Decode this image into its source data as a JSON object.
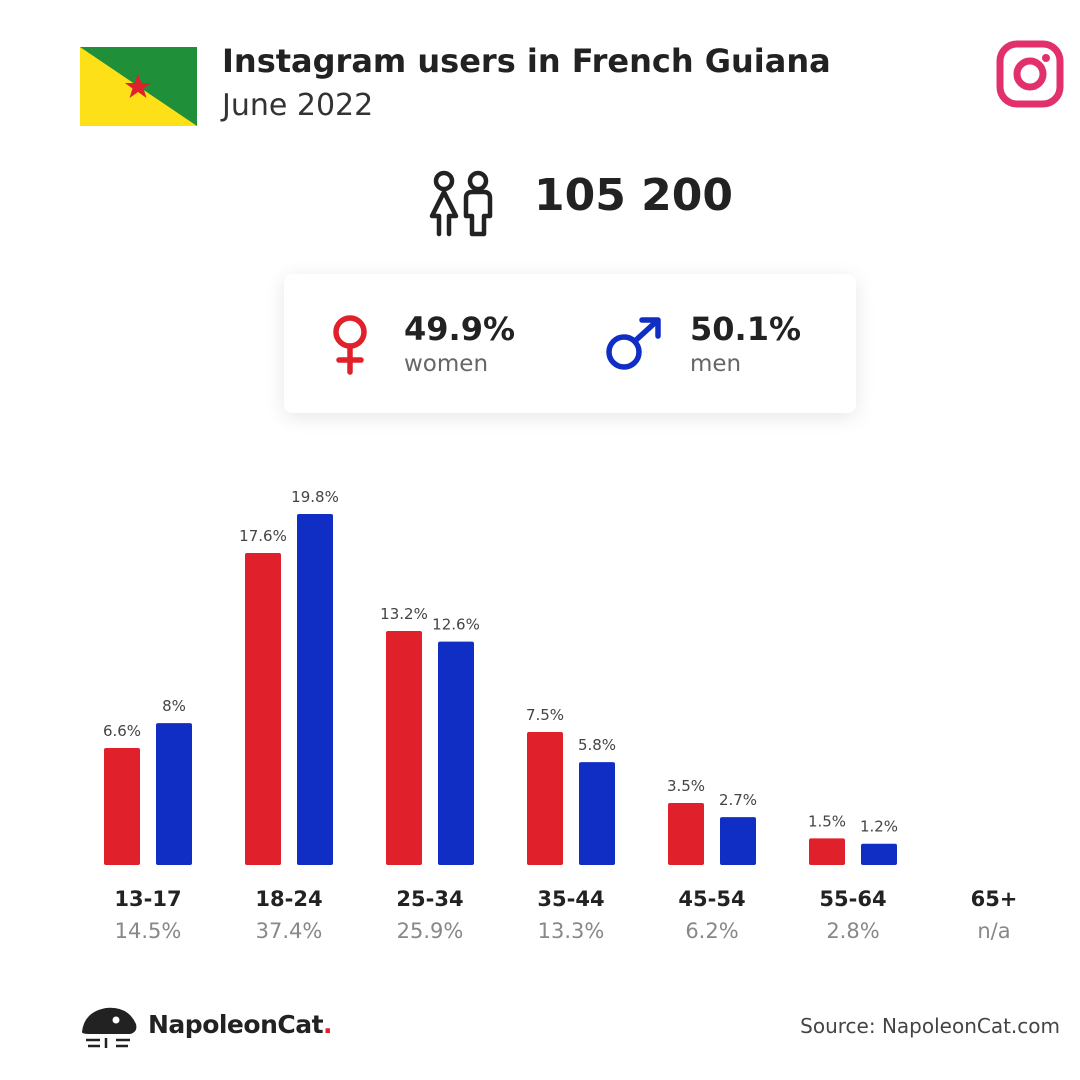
{
  "header": {
    "title": "Instagram users in French Guiana",
    "subtitle": "June 2022",
    "flag_icon": "french-guiana-flag",
    "platform_icon": "instagram-icon"
  },
  "summary": {
    "total": "105 200",
    "icon": "people-icon"
  },
  "gender": {
    "women_pct": "49.9%",
    "women_label": "women",
    "men_pct": "50.1%",
    "men_label": "men"
  },
  "colors": {
    "women": "#e0202a",
    "men": "#102ec4",
    "instagram": "#e1306c",
    "flag_green": "#1f8f3a",
    "flag_yellow": "#fde017",
    "flag_star": "#e0202a"
  },
  "chart_data": {
    "type": "bar",
    "categories": [
      "13-17",
      "18-24",
      "25-34",
      "35-44",
      "45-54",
      "55-64",
      "65+"
    ],
    "category_totals": [
      "14.5%",
      "37.4%",
      "25.9%",
      "13.3%",
      "6.2%",
      "2.8%",
      "n/a"
    ],
    "series": [
      {
        "name": "women",
        "values": [
          6.6,
          17.6,
          13.2,
          7.5,
          3.5,
          1.5,
          null
        ],
        "labels": [
          "6.6%",
          "17.6%",
          "13.2%",
          "7.5%",
          "3.5%",
          "1.5%",
          ""
        ]
      },
      {
        "name": "men",
        "values": [
          8,
          19.8,
          12.6,
          5.8,
          2.7,
          1.2,
          null
        ],
        "labels": [
          "8%",
          "19.8%",
          "12.6%",
          "5.8%",
          "2.7%",
          "1.2%",
          ""
        ]
      }
    ],
    "ylim": [
      0,
      19.8
    ],
    "grid": false,
    "legend": "none"
  },
  "footer": {
    "brand": "NapoleonCat",
    "brand_dot": ".",
    "source": "Source: NapoleonCat.com"
  }
}
